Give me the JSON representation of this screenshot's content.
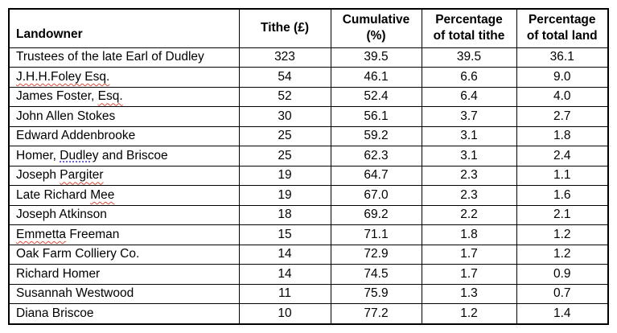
{
  "document": {
    "marks": {
      "spell_color": "#e04a38",
      "grammar_color": "#6a62d8",
      "border_color": "#000000"
    },
    "table": {
      "columns": [
        {
          "id": "landowner",
          "label": "Landowner"
        },
        {
          "id": "tithe",
          "label": "Tithe (£)"
        },
        {
          "id": "cumulative",
          "label": "Cumulative\n(%)"
        },
        {
          "id": "pct_tithe",
          "label": "Percentage\nof total tithe"
        },
        {
          "id": "pct_land",
          "label": "Percentage\nof total land"
        }
      ],
      "rows": [
        {
          "landowner": [
            {
              "text": "Trustees of the late Earl of Dudley",
              "mark": "none"
            }
          ],
          "tithe": "323",
          "cumulative": "39.5",
          "pct_tithe": "39.5",
          "pct_land": "36.1"
        },
        {
          "landowner": [
            {
              "text": "J.H.H.Foley Esq.",
              "mark": "spell"
            }
          ],
          "tithe": "54",
          "cumulative": "46.1",
          "pct_tithe": "6.6",
          "pct_land": "9.0"
        },
        {
          "landowner": [
            {
              "text": "James Foster, ",
              "mark": "none"
            },
            {
              "text": "Esq.",
              "mark": "spell"
            }
          ],
          "tithe": "52",
          "cumulative": "52.4",
          "pct_tithe": "6.4",
          "pct_land": "4.0"
        },
        {
          "landowner": [
            {
              "text": "John Allen Stokes",
              "mark": "none"
            }
          ],
          "tithe": "30",
          "cumulative": "56.1",
          "pct_tithe": "3.7",
          "pct_land": "2.7"
        },
        {
          "landowner": [
            {
              "text": "Edward Addenbrooke",
              "mark": "none"
            }
          ],
          "tithe": "25",
          "cumulative": "59.2",
          "pct_tithe": "3.1",
          "pct_land": "1.8"
        },
        {
          "landowner": [
            {
              "text": "Homer, ",
              "mark": "none"
            },
            {
              "text": "Dudley",
              "mark": "grammar"
            },
            {
              "text": " and Briscoe",
              "mark": "none"
            }
          ],
          "tithe": "25",
          "cumulative": "62.3",
          "pct_tithe": "3.1",
          "pct_land": "2.4"
        },
        {
          "landowner": [
            {
              "text": "Joseph ",
              "mark": "none"
            },
            {
              "text": "Pargiter",
              "mark": "spell"
            }
          ],
          "tithe": "19",
          "cumulative": "64.7",
          "pct_tithe": "2.3",
          "pct_land": "1.1"
        },
        {
          "landowner": [
            {
              "text": "Late Richard ",
              "mark": "none"
            },
            {
              "text": "Mee",
              "mark": "spell"
            }
          ],
          "tithe": "19",
          "cumulative": "67.0",
          "pct_tithe": "2.3",
          "pct_land": "1.6"
        },
        {
          "landowner": [
            {
              "text": "Joseph Atkinson",
              "mark": "none"
            }
          ],
          "tithe": "18",
          "cumulative": "69.2",
          "pct_tithe": "2.2",
          "pct_land": "2.1"
        },
        {
          "landowner": [
            {
              "text": "Emmetta",
              "mark": "spell"
            },
            {
              "text": " Freeman",
              "mark": "none"
            }
          ],
          "tithe": "15",
          "cumulative": "71.1",
          "pct_tithe": "1.8",
          "pct_land": "1.2"
        },
        {
          "landowner": [
            {
              "text": "Oak Farm Colliery Co.",
              "mark": "none"
            }
          ],
          "tithe": "14",
          "cumulative": "72.9",
          "pct_tithe": "1.7",
          "pct_land": "1.2"
        },
        {
          "landowner": [
            {
              "text": "Richard Homer",
              "mark": "none"
            }
          ],
          "tithe": "14",
          "cumulative": "74.5",
          "pct_tithe": "1.7",
          "pct_land": "0.9"
        },
        {
          "landowner": [
            {
              "text": "Susannah Westwood",
              "mark": "none"
            }
          ],
          "tithe": "11",
          "cumulative": "75.9",
          "pct_tithe": "1.3",
          "pct_land": "0.7"
        },
        {
          "landowner": [
            {
              "text": "Diana Briscoe",
              "mark": "none"
            }
          ],
          "tithe": "10",
          "cumulative": "77.2",
          "pct_tithe": "1.2",
          "pct_land": "1.4"
        }
      ]
    }
  }
}
